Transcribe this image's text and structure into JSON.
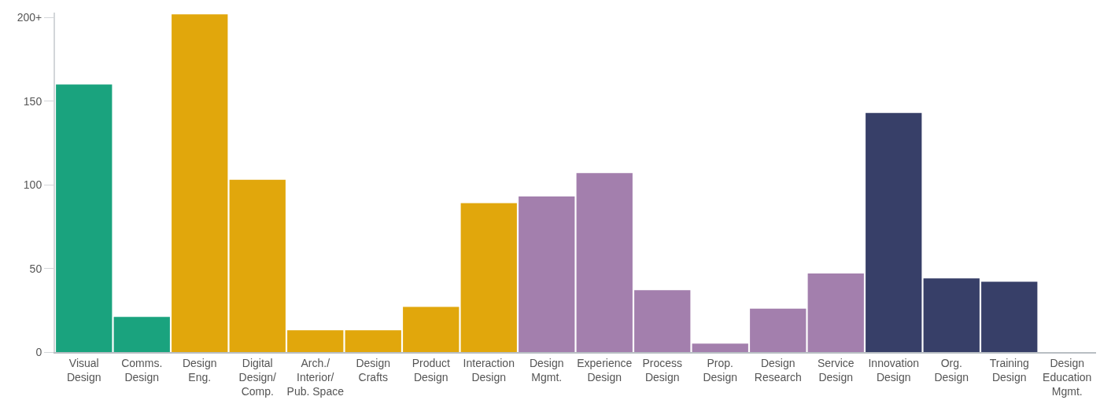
{
  "chart_data": {
    "type": "bar",
    "categories": [
      "Visual\nDesign",
      "Comms.\nDesign",
      "Design\nEng.",
      "Digital\nDesign/\nComp.",
      "Arch./\nInterior/\nPub. Space",
      "Design\nCrafts",
      "Product\nDesign",
      "Interaction\nDesign",
      "Design\nMgmt.",
      "Experience\nDesign",
      "Process\nDesign",
      "Prop.\nDesign",
      "Design\nResearch",
      "Service\nDesign",
      "Innovation\nDesign",
      "Org.\nDesign",
      "Training\nDesign",
      "Design\nEducation\nMgmt."
    ],
    "values": [
      160,
      21,
      202,
      103,
      13,
      13,
      27,
      89,
      93,
      107,
      37,
      5,
      26,
      47,
      143,
      44,
      42,
      0
    ],
    "colors": [
      "#1aa37e",
      "#1aa37e",
      "#e1a70c",
      "#e1a70c",
      "#e1a70c",
      "#e1a70c",
      "#e1a70c",
      "#e1a70c",
      "#a37fad",
      "#a37fad",
      "#a37fad",
      "#a37fad",
      "#a37fad",
      "#a37fad",
      "#373f68",
      "#373f68",
      "#373f68",
      "#373f68"
    ],
    "ylim": [
      0,
      203
    ],
    "yticks": [
      0,
      50,
      100,
      150,
      {
        "value": 200,
        "label": "200+"
      }
    ]
  }
}
